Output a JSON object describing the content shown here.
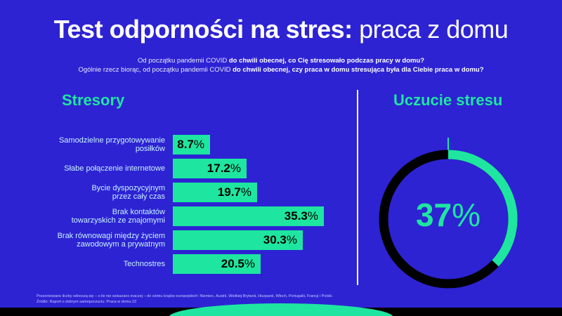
{
  "title": {
    "bold": "Test odporności na stres:",
    "light": "praca z domu"
  },
  "subtitle": {
    "line1_normal": "Od początku pandemii COVID ",
    "line1_bold": "do chwili obecnej, co Cię stresowało podczas pracy w domu?",
    "line2_normal": "Ogólnie rzecz biorąc, od początku pandemii COVID ",
    "line2_bold": "do chwili obecnej, czy praca w domu stresująca była dla Ciebie praca w domu?"
  },
  "left_heading": "Stresory",
  "right_heading": "Uczucie stresu",
  "notes": {
    "line1": "Prezentowane liczby odnoszą się – o ile nie wskazano inaczej – do ośmiu krajów europejskich: Niemiec, Austrii, Wielkiej Brytanii, Hiszpanii, Włoch, Portugalii, Francji i Polski.",
    "line2": "Źródło: Raport o dobrym samopoczuciu: Praca w domu 22"
  },
  "colors": {
    "background": "#2d23d3",
    "accent": "#1ee6a0",
    "dark": "#000000"
  },
  "chart_data": [
    {
      "type": "bar",
      "orientation": "horizontal",
      "title": "Stresory",
      "categories": [
        "Samodzielne przygotowywanie posiłków",
        "Słabe połączenie internetowe",
        "Bycie dyspozycyjnym przez cały czas",
        "Brak kontaktów towarzyskich ze znajomymi",
        "Brak równowagi między życiem zawodowym a prywatnym",
        "Technostres"
      ],
      "category_lines": [
        [
          "Samodzielne przygotowywanie",
          "posiłków"
        ],
        [
          "Słabe połączenie internetowe"
        ],
        [
          "Bycie dyspozycyjnym",
          "przez cały czas"
        ],
        [
          "Brak kontaktów",
          "towarzyskich ze znajomymi"
        ],
        [
          "Brak równowagi między życiem",
          "zawodowym a prywatnym"
        ],
        [
          "Technostres"
        ]
      ],
      "values": [
        8.7,
        17.2,
        19.7,
        35.3,
        30.3,
        20.5
      ],
      "labels": [
        "8.7",
        "17.2",
        "19.7",
        "35.3",
        "30.3",
        "20.5"
      ],
      "unit": "%"
    },
    {
      "type": "pie",
      "subtype": "donut",
      "title": "Uczucie stresu",
      "value": 37,
      "label": "37",
      "unit": "%"
    }
  ]
}
